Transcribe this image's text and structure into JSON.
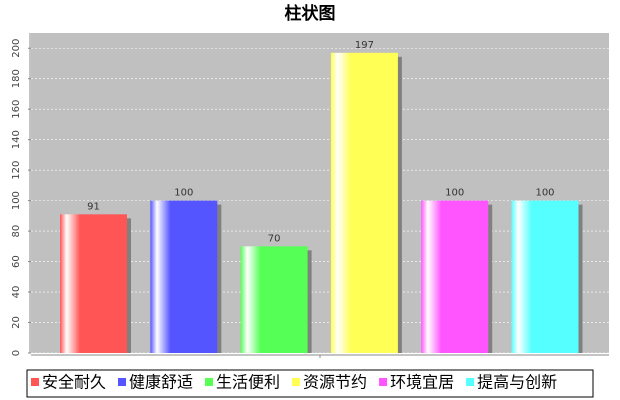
{
  "chart_data": {
    "type": "bar",
    "title": "柱状图",
    "series": [
      {
        "name": "安全耐久",
        "color": "#ff5555",
        "values": [
          91
        ]
      },
      {
        "name": "健康舒适",
        "color": "#5555ff",
        "values": [
          100
        ]
      },
      {
        "name": "生活便利",
        "color": "#55ff55",
        "values": [
          70
        ]
      },
      {
        "name": "资源节约",
        "color": "#ffff55",
        "values": [
          197
        ]
      },
      {
        "name": "环境宜居",
        "color": "#ff55ff",
        "values": [
          100
        ]
      },
      {
        "name": "提高与创新",
        "color": "#55ffff",
        "values": [
          100
        ]
      }
    ],
    "ylim": [
      0,
      210
    ],
    "yticks": [
      0,
      20,
      40,
      60,
      80,
      100,
      120,
      140,
      160,
      180,
      200
    ],
    "grid": true
  }
}
